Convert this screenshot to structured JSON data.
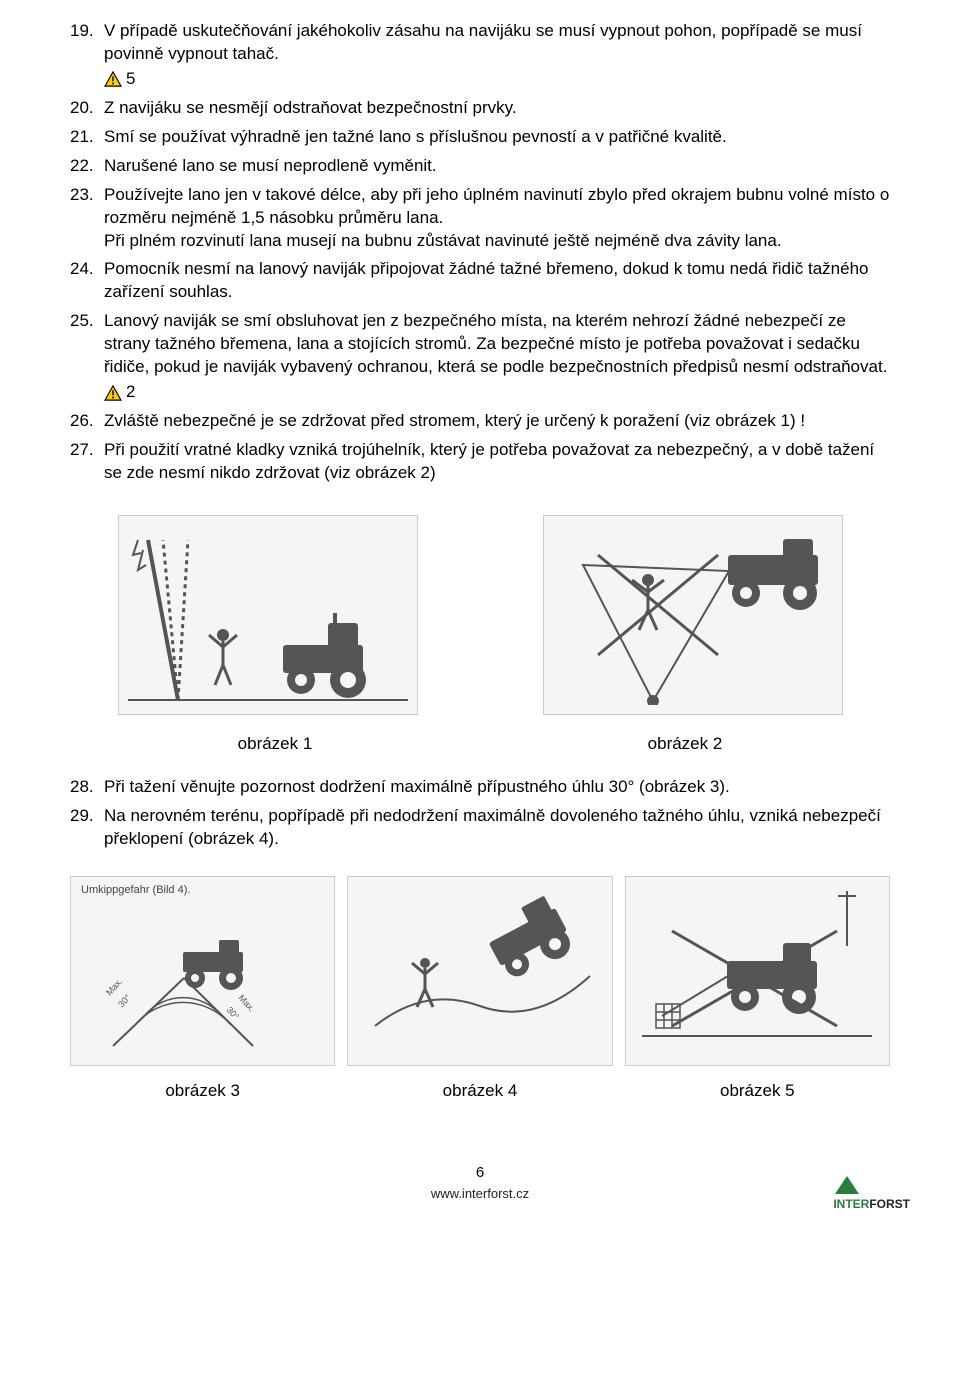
{
  "items": [
    {
      "n": "19.",
      "text": "V případě uskutečňování jakéhokoliv zásahu na navijáku se musí vypnout pohon, popřípadě se musí povinně vypnout tahač.",
      "warn": "5"
    },
    {
      "n": "20.",
      "text": "Z navijáku se nesmějí odstraňovat bezpečnostní prvky."
    },
    {
      "n": "21.",
      "text": "Smí se používat výhradně jen tažné lano s příslušnou pevností a v patřičné kvalitě."
    },
    {
      "n": "22.",
      "text": "Narušené lano se musí neprodleně vyměnit."
    },
    {
      "n": "23.",
      "text": "Používejte lano jen v takové délce, aby při jeho úplném navinutí zbylo před okrajem bubnu volné místo o rozměru nejméně 1,5 násobku průměru lana.\nPři plném rozvinutí lana musejí na bubnu zůstávat navinuté ještě nejméně dva závity lana."
    },
    {
      "n": "24.",
      "text": "Pomocník nesmí na lanový naviják připojovat žádné tažné břemeno, dokud k tomu nedá řidič tažného zařízení souhlas."
    },
    {
      "n": "25.",
      "text": "Lanový naviják se smí obsluhovat jen z bezpečného místa, na kterém nehrozí žádné nebezpečí ze strany tažného břemena, lana a stojících stromů. Za bezpečné místo je potřeba považovat i sedačku řidiče, pokud je naviják vybavený ochranou, která se podle bezpečnostních předpisů nesmí odstraňovat.",
      "warn": "2"
    },
    {
      "n": "26.",
      "text": "Zvláště nebezpečné je se zdržovat před stromem, který je určený k poražení (viz obrázek 1) !"
    },
    {
      "n": "27.",
      "text": "Při použití vratné kladky vzniká trojúhelník, který je potřeba považovat za nebezpečný, a v době tažení se zde nesmí nikdo zdržovat (viz obrázek 2)"
    }
  ],
  "items2": [
    {
      "n": "28.",
      "text": "Při tažení věnujte pozornost dodržení maximálně přípustného úhlu 30° (obrázek 3)."
    },
    {
      "n": "29.",
      "text": "Na nerovném terénu, popřípadě při nedodržení maximálně dovoleného tažného úhlu, vzniká nebezpečí překlopení (obrázek 4)."
    }
  ],
  "fig": {
    "c1": "obrázek 1",
    "c2": "obrázek 2",
    "c3": "obrázek 3",
    "c4": "obrázek 4",
    "c5": "obrázek 5",
    "panel3_label": "Umkippgefahr (Bild 4)."
  },
  "footer": {
    "page": "6",
    "url": "www.interforst.cz"
  },
  "logo": {
    "brand1": "INTER",
    "brand2": "FORST"
  },
  "colors": {
    "text": "#000000",
    "warn_border": "#000000",
    "warn_fill": "#ffcc00",
    "logo_green": "#2a7d3f",
    "panel_bg": "#f5f5f5"
  }
}
